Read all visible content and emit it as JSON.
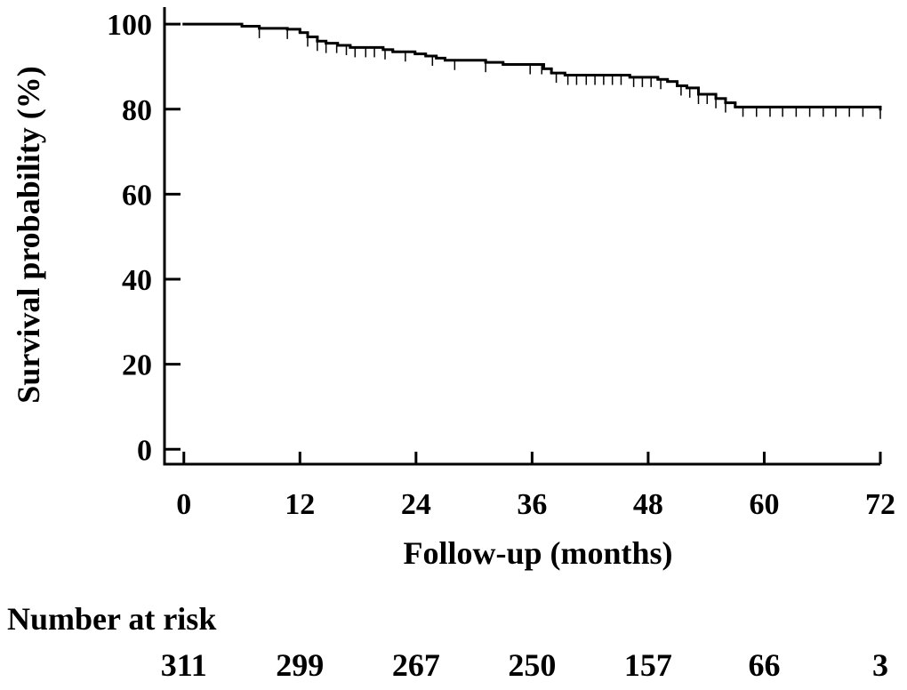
{
  "chart_data": {
    "type": "survival",
    "x_label": "Follow-up (months)",
    "y_label": "Survival probability (%)",
    "xlim": [
      -2,
      72
    ],
    "ylim": [
      -3.5,
      104
    ],
    "xticks": [
      0,
      12,
      24,
      36,
      48,
      60,
      72
    ],
    "yticks": [
      0,
      20,
      40,
      60,
      80,
      100
    ],
    "color": "#000000",
    "series": [
      {
        "x": [
          0,
          6,
          7.8,
          10.7,
          12,
          12.8,
          13.8,
          14.7,
          15.9,
          17.2,
          20.6,
          21.6,
          23.9,
          25,
          26.1,
          27,
          31.2,
          33,
          37.2,
          38,
          39.4,
          46.1,
          49,
          50,
          51,
          52,
          53.2,
          55,
          56,
          57,
          72
        ],
        "values": [
          100,
          99.5,
          99,
          98.8,
          98,
          97,
          96,
          95.5,
          95,
          94.5,
          94,
          93.5,
          93,
          92.5,
          92,
          91.5,
          91,
          90.5,
          89.5,
          88.5,
          88,
          87.5,
          87,
          86.5,
          85.5,
          85,
          83.5,
          82.5,
          81.5,
          80.5,
          80
        ]
      }
    ],
    "censored_x": [
      7.8,
      10.7,
      12.8,
      13.8,
      14.7,
      15.8,
      16.8,
      17.7,
      18.8,
      19.7,
      20.8,
      22.9,
      25.7,
      28.0,
      31.2,
      35.8,
      37.0,
      38.5,
      39.7,
      40.6,
      41.6,
      42.5,
      43.4,
      44.3,
      45.2,
      46.5,
      47.4,
      48.3,
      49.3,
      51.4,
      52.3,
      53.2,
      54.1,
      55.0,
      56.0,
      57.8,
      59.2,
      60.6,
      61.9,
      63.3,
      64.7,
      66.1,
      67.4,
      68.8,
      70.2,
      72
    ],
    "risk_table": {
      "title": "Number at risk",
      "values": [
        311,
        299,
        267,
        250,
        157,
        66,
        3
      ]
    }
  }
}
